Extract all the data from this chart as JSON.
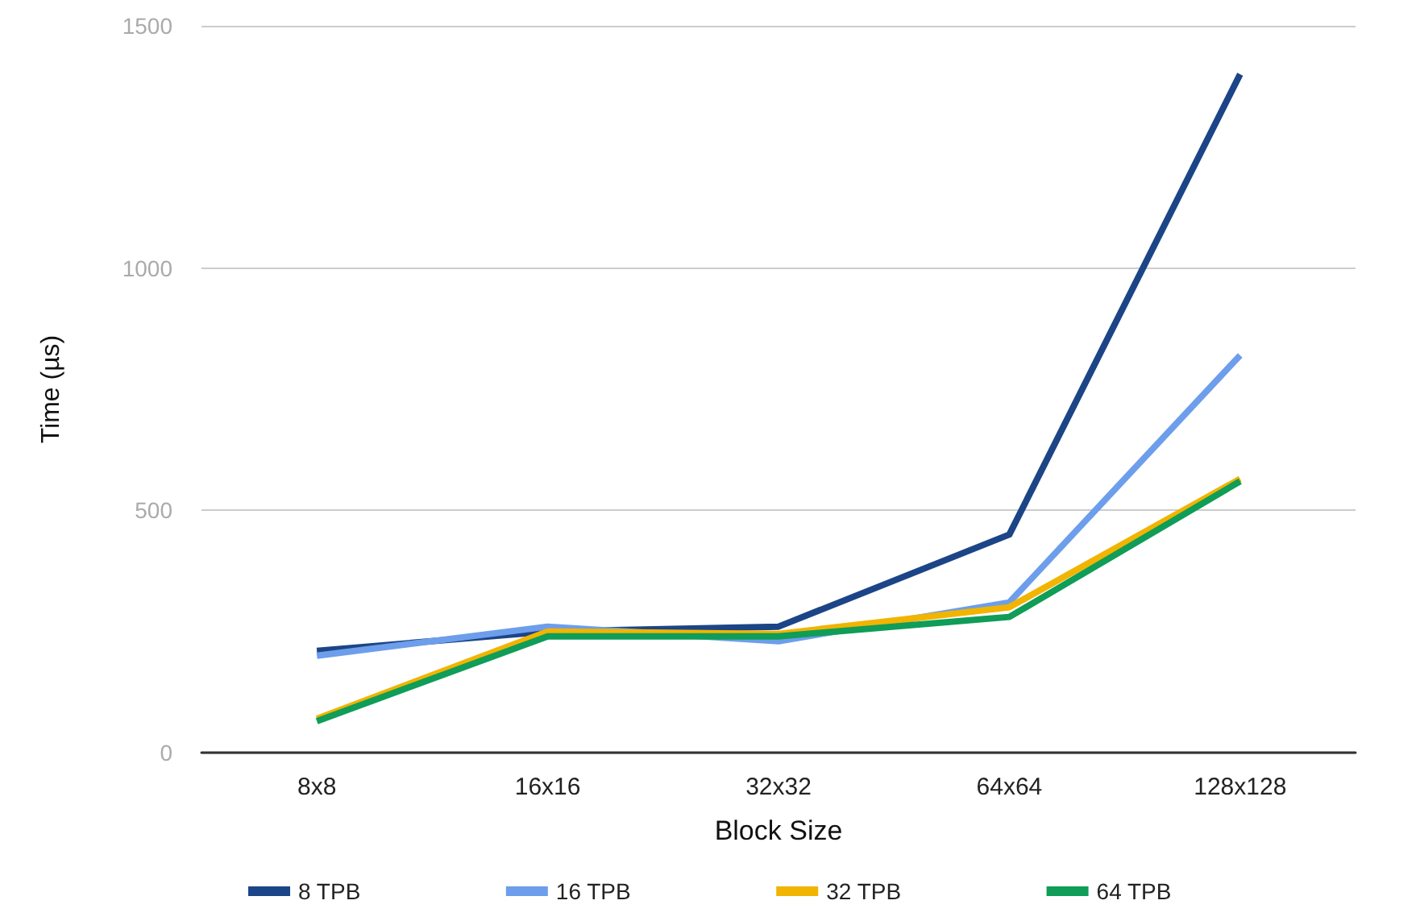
{
  "chart_data": {
    "type": "line",
    "xlabel": "Block Size",
    "ylabel": "Time (µs)",
    "categories": [
      "8x8",
      "16x16",
      "32x32",
      "64x64",
      "128x128"
    ],
    "series": [
      {
        "name": "8 TPB",
        "color": "#1c4587",
        "values": [
          210,
          250,
          260,
          450,
          1400
        ]
      },
      {
        "name": "16 TPB",
        "color": "#6d9eeb",
        "values": [
          200,
          260,
          230,
          310,
          820
        ]
      },
      {
        "name": "32 TPB",
        "color": "#f1b400",
        "values": [
          70,
          250,
          245,
          300,
          565
        ]
      },
      {
        "name": "64 TPB",
        "color": "#0f9d58",
        "values": [
          65,
          240,
          240,
          280,
          560
        ]
      }
    ],
    "ylim": [
      0,
      1500
    ],
    "yticks": [
      0,
      500,
      1000,
      1500
    ],
    "grid": "y",
    "legend": "bottom",
    "marker": "none",
    "line_style": "solid"
  }
}
